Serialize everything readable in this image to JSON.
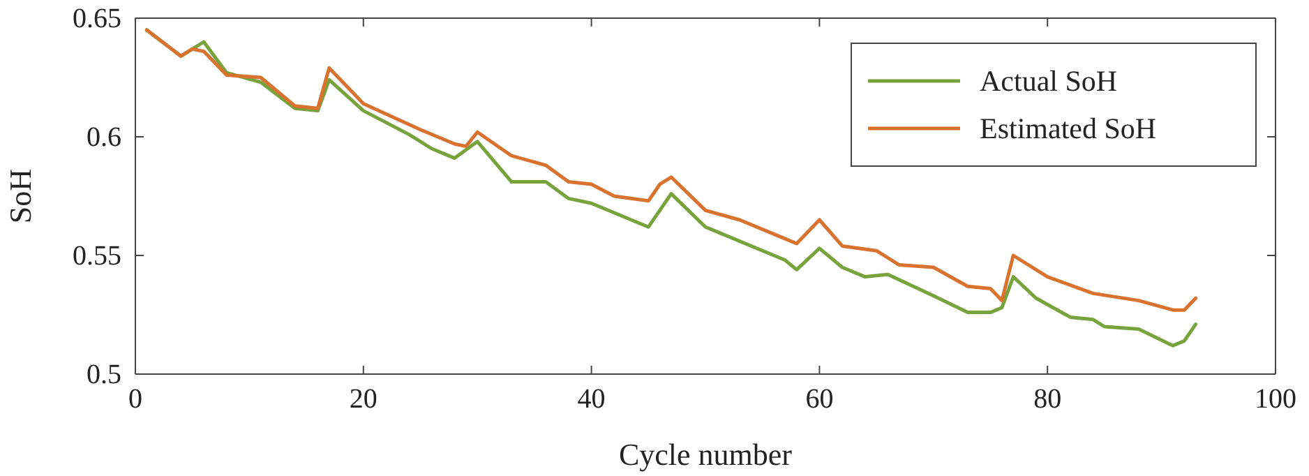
{
  "chart_data": {
    "type": "line",
    "xlabel": "Cycle number",
    "ylabel": "SoH",
    "xlim": [
      0,
      100
    ],
    "xticks": [
      0,
      20,
      40,
      60,
      80,
      100
    ],
    "ylim": [
      0.5,
      0.65
    ],
    "yticks": [
      0.5,
      0.55,
      0.6,
      0.65
    ],
    "legend": "top right",
    "grid": false,
    "series": [
      {
        "name": "Actual SoH",
        "color": "#77a23c",
        "x": [
          1,
          4,
          6,
          8,
          11,
          14,
          16,
          17,
          20,
          24,
          26,
          28,
          30,
          33,
          36,
          38,
          40,
          45,
          47,
          50,
          57,
          58,
          60,
          62,
          64,
          66,
          70,
          73,
          75,
          76,
          77,
          79,
          82,
          84,
          85,
          88,
          91,
          92,
          93
        ],
        "values": [
          0.645,
          0.634,
          0.64,
          0.627,
          0.623,
          0.612,
          0.611,
          0.624,
          0.611,
          0.601,
          0.595,
          0.591,
          0.598,
          0.581,
          0.581,
          0.574,
          0.572,
          0.562,
          0.576,
          0.562,
          0.548,
          0.544,
          0.553,
          0.545,
          0.541,
          0.542,
          0.533,
          0.526,
          0.526,
          0.528,
          0.541,
          0.532,
          0.524,
          0.523,
          0.52,
          0.519,
          0.512,
          0.514,
          0.521
        ]
      },
      {
        "name": "Estimated SoH",
        "color": "#d9722e",
        "x": [
          1,
          4,
          5,
          6,
          8,
          11,
          14,
          16,
          17,
          20,
          25,
          28,
          29,
          30,
          33,
          36,
          38,
          40,
          42,
          45,
          46,
          47,
          50,
          53,
          56,
          58,
          60,
          62,
          65,
          67,
          70,
          73,
          75,
          76,
          77,
          80,
          84,
          88,
          91,
          92,
          93
        ],
        "values": [
          0.645,
          0.634,
          0.637,
          0.636,
          0.626,
          0.625,
          0.613,
          0.612,
          0.629,
          0.614,
          0.603,
          0.597,
          0.596,
          0.602,
          0.592,
          0.588,
          0.581,
          0.58,
          0.575,
          0.573,
          0.58,
          0.583,
          0.569,
          0.565,
          0.559,
          0.555,
          0.565,
          0.554,
          0.552,
          0.546,
          0.545,
          0.537,
          0.536,
          0.531,
          0.55,
          0.541,
          0.534,
          0.531,
          0.527,
          0.527,
          0.532
        ]
      }
    ]
  }
}
